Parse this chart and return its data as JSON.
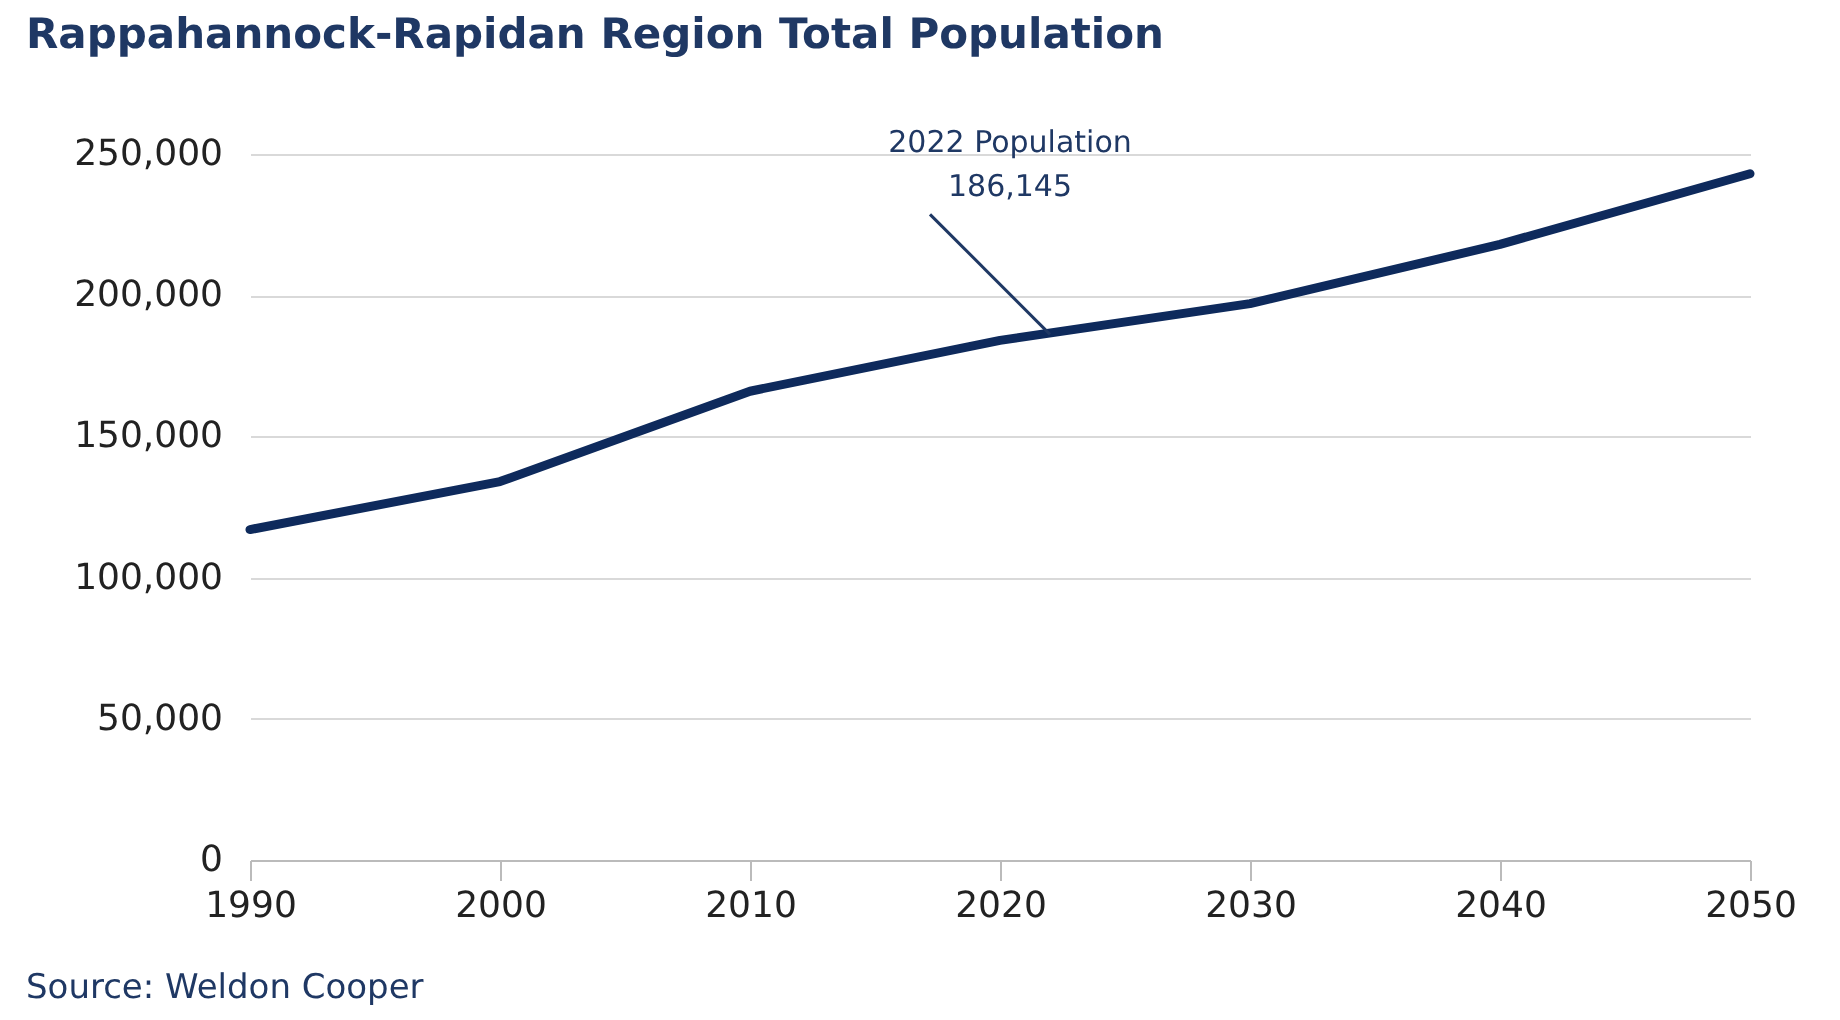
{
  "chart_data": {
    "type": "line",
    "title": "Rappahannock-Rapidan Region Total Population",
    "x": [
      1990,
      2000,
      2010,
      2020,
      2030,
      2040,
      2050
    ],
    "series": [
      {
        "color": "#0e2a5c",
        "values": [
          117000,
          134000,
          166000,
          184000,
          197000,
          218000,
          243000
        ]
      }
    ],
    "xlim": [
      1990,
      2050
    ],
    "xticks": [
      1990,
      2000,
      2010,
      2020,
      2030,
      2040,
      2050
    ],
    "ylim": [
      0,
      250000
    ],
    "yticks": [
      0,
      {
        "value": 50000,
        "label": "50,000"
      },
      {
        "value": 100000,
        "label": "100,000"
      },
      {
        "value": 150000,
        "label": "150,000"
      },
      {
        "value": 200000,
        "label": "200,000"
      },
      {
        "value": 250000,
        "label": "250,000"
      }
    ],
    "grid": "y",
    "marker": "none",
    "line_style": "solid",
    "annotations": [
      {
        "text": "2022 Population\n186,145",
        "x": 2022,
        "y": 186145
      },
      "Source: Weldon Cooper"
    ]
  }
}
